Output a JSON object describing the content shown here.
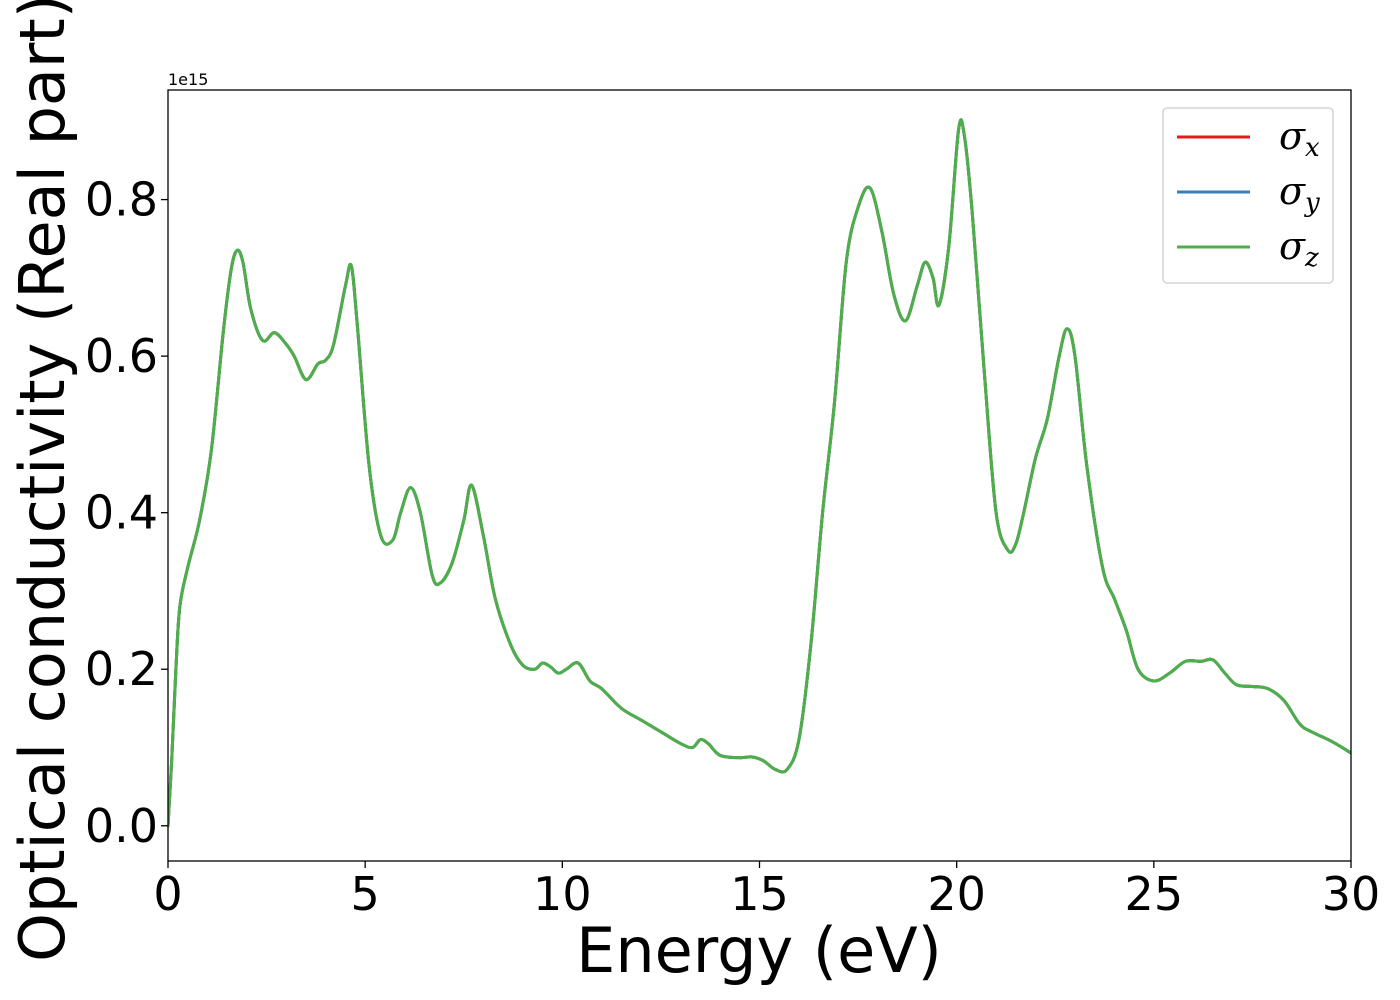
{
  "chart_data": {
    "type": "line",
    "xlabel": "Energy (eV)",
    "ylabel": "Optical conductivity (Real part)",
    "y_offset_text": "1e15",
    "xlim": [
      0,
      30
    ],
    "ylim": [
      -0.045,
      0.94
    ],
    "x_ticks": [
      0,
      5,
      10,
      15,
      20,
      25,
      30
    ],
    "x_tick_labels": [
      "0",
      "5",
      "10",
      "15",
      "20",
      "25",
      "30"
    ],
    "y_ticks": [
      0.0,
      0.2,
      0.4,
      0.6,
      0.8
    ],
    "y_tick_labels": [
      "0.0",
      "0.2",
      "0.4",
      "0.6",
      "0.8"
    ],
    "grid": false,
    "legend_position": "top-right",
    "series": [
      {
        "name": "σx",
        "symbol": "σ",
        "subscript": "x",
        "color": "#e41a1c"
      },
      {
        "name": "σy",
        "symbol": "σ",
        "subscript": "y",
        "color": "#377eb8"
      },
      {
        "name": "σz",
        "symbol": "σ",
        "subscript": "z",
        "color": "#4daf4a"
      }
    ],
    "x": [
      0.0,
      0.1,
      0.2,
      0.3,
      0.5,
      0.8,
      1.1,
      1.4,
      1.6,
      1.75,
      1.9,
      2.1,
      2.4,
      2.7,
      3.0,
      3.2,
      3.5,
      3.8,
      4.0,
      4.2,
      4.5,
      4.65,
      4.8,
      5.1,
      5.4,
      5.7,
      5.9,
      6.15,
      6.4,
      6.7,
      6.9,
      7.2,
      7.5,
      7.7,
      8.0,
      8.3,
      8.7,
      9.0,
      9.3,
      9.5,
      9.7,
      9.9,
      10.1,
      10.4,
      10.7,
      11.0,
      11.5,
      12.0,
      12.5,
      13.0,
      13.3,
      13.5,
      13.7,
      14.0,
      14.5,
      14.8,
      15.1,
      15.4,
      15.7,
      16.0,
      16.3,
      16.6,
      16.9,
      17.2,
      17.5,
      17.8,
      18.1,
      18.4,
      18.7,
      19.0,
      19.2,
      19.4,
      19.55,
      19.8,
      20.05,
      20.2,
      20.4,
      20.7,
      21.0,
      21.3,
      21.5,
      21.7,
      22.0,
      22.3,
      22.6,
      22.8,
      23.0,
      23.3,
      23.7,
      24.0,
      24.3,
      24.6,
      25.0,
      25.4,
      25.8,
      26.2,
      26.5,
      26.8,
      27.1,
      27.5,
      27.9,
      28.3,
      28.7,
      29.0,
      29.5,
      30.0
    ],
    "values": [
      0.0,
      0.09,
      0.2,
      0.28,
      0.33,
      0.39,
      0.48,
      0.63,
      0.71,
      0.735,
      0.72,
      0.66,
      0.62,
      0.63,
      0.615,
      0.6,
      0.57,
      0.59,
      0.595,
      0.615,
      0.69,
      0.715,
      0.64,
      0.46,
      0.37,
      0.365,
      0.4,
      0.432,
      0.4,
      0.32,
      0.31,
      0.335,
      0.39,
      0.435,
      0.37,
      0.29,
      0.23,
      0.205,
      0.2,
      0.208,
      0.203,
      0.195,
      0.2,
      0.208,
      0.185,
      0.175,
      0.15,
      0.135,
      0.12,
      0.105,
      0.1,
      0.11,
      0.105,
      0.09,
      0.087,
      0.088,
      0.083,
      0.072,
      0.072,
      0.11,
      0.23,
      0.4,
      0.54,
      0.72,
      0.79,
      0.815,
      0.76,
      0.68,
      0.645,
      0.69,
      0.72,
      0.7,
      0.665,
      0.74,
      0.89,
      0.88,
      0.78,
      0.58,
      0.4,
      0.352,
      0.36,
      0.4,
      0.47,
      0.52,
      0.6,
      0.635,
      0.6,
      0.46,
      0.33,
      0.29,
      0.25,
      0.2,
      0.185,
      0.195,
      0.21,
      0.21,
      0.212,
      0.195,
      0.18,
      0.178,
      0.175,
      0.16,
      0.13,
      0.12,
      0.108,
      0.093
    ]
  }
}
